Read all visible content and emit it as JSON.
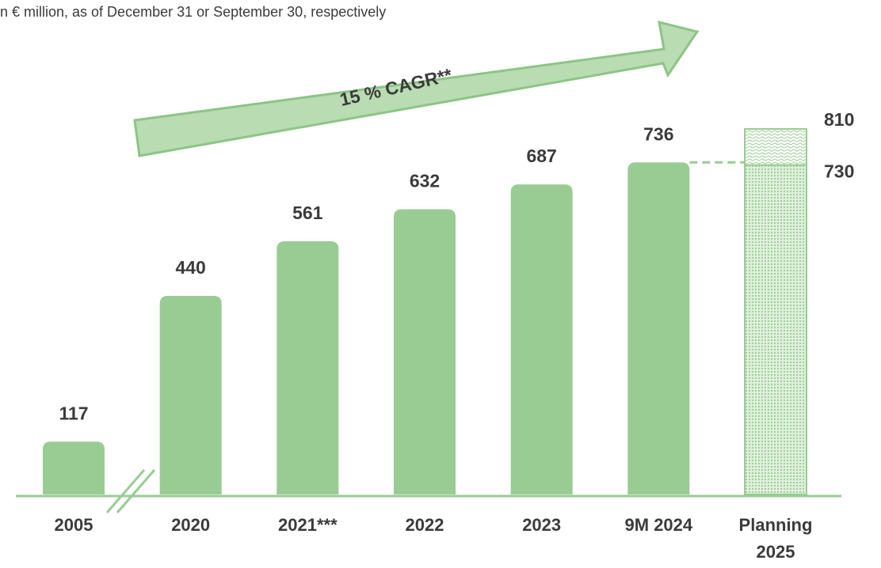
{
  "chart_data": {
    "type": "bar",
    "subtitle": "n € million, as of December 31 or September 30, respectively",
    "annotation": "15 % CAGR**",
    "categories": [
      "2005",
      "2020",
      "2021***",
      "2022",
      "2023",
      "9M 2024",
      "Planning 2025"
    ],
    "values": [
      117,
      440,
      561,
      632,
      687,
      736,
      730
    ],
    "planning_high": 810,
    "color": "#99cc93"
  }
}
